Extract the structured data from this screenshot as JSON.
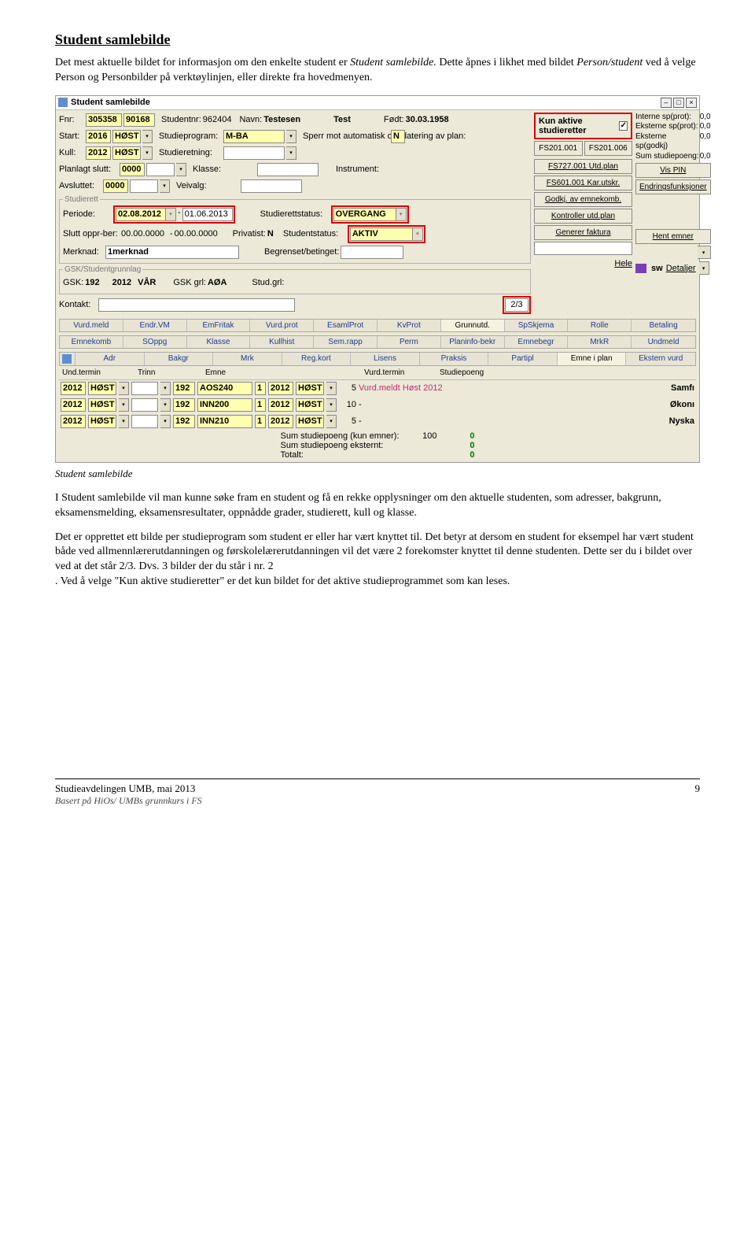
{
  "doc": {
    "heading": "Student samlebilde",
    "intro1": "Det mest aktuelle bildet for informasjon om den enkelte student er ",
    "intro1_em": "Student samlebilde.",
    "intro2": " Dette åpnes i likhet med bildet ",
    "intro2_em": "Person/student",
    "intro3": " ved å velge Person og Personbilder på verktøylinjen, eller direkte fra hovedmenyen.",
    "caption": "Student samlebilde",
    "body1": "I Student samlebilde vil man kunne søke fram en student og få en rekke opplysninger om den aktuelle studenten, som adresser, bakgrunn, eksamensmelding, eksamensresultater, oppnådde grader, studierett, kull og klasse.",
    "body2a": "Det er opprettet ett bilde per studieprogram som student er eller har vært knyttet til. Det betyr at dersom en student for eksempel har vært student både ved allmennlærerutdanningen og førskolelærerutdanningen vil det være 2 forekomster knyttet til denne studenten. Dette ser du i bildet over ved at det står 2/3. Dvs. 3 bilder der du står i nr. 2",
    "body2b": ". Ved å velge \"Kun aktive studieretter\" er det kun bildet for det aktive studieprogrammet som kan leses.",
    "footer_line1": "Studieavdelingen UMB, mai 2013",
    "footer_line2": "Basert på HiOs/ UMBs grunnkurs i FS",
    "page_no": "9"
  },
  "win": {
    "title": "Student samlebilde",
    "labels": {
      "fnr": "Fnr:",
      "studentnr": "Studentnr:",
      "navn": "Navn:",
      "fodt": "Født:",
      "start": "Start:",
      "studieprogram": "Studieprogram:",
      "sperr": "Sperr mot automatisk oppdatering av plan:",
      "kull": "Kull:",
      "studieretning": "Studieretning:",
      "planlagt_slutt": "Planlagt slutt:",
      "klasse": "Klasse:",
      "instrument": "Instrument:",
      "avsluttet": "Avsluttet:",
      "veivalg": "Veivalg:",
      "periode": "Periode:",
      "studierettstatus": "Studierettstatus:",
      "slutt_oppr": "Slutt oppr-ber:",
      "privatist": "Privatist:",
      "studentstatus": "Studentstatus:",
      "merknad": "Merknad:",
      "begrenset": "Begrenset/betinget:",
      "gsk": "GSK:",
      "gsk_grl": "GSK grl:",
      "stud_grl": "Stud.grl:",
      "kontakt": "Kontakt:",
      "kunaktive": "Kun aktive studieretter",
      "hele": "Hele",
      "detaljer": "Detaljer",
      "und_termin": "Und.termin",
      "trinn": "Trinn",
      "emne": "Emne",
      "vurd_termin": "Vurd.termin",
      "studiepoeng": "Studiepoeng",
      "sum1": "Sum studiepoeng (kun emner):",
      "sum2": "Sum studiepoeng eksternt:",
      "sum3": "Totalt:"
    },
    "vals": {
      "fnr1": "305358",
      "fnr2": "90168",
      "studentnr": "962404",
      "navn1": "Testesen",
      "navn2": "Test",
      "fodt": "30.03.1958",
      "start_y": "2016",
      "start_s": "HØST",
      "studieprogram": "M-BA",
      "sperr": "N",
      "kull_y": "2012",
      "kull_s": "HØST",
      "studieretning": "",
      "planlagt_slutt": "0000",
      "klasse": "",
      "instrument": "",
      "avsluttet": "0000",
      "veivalg": "",
      "periode_a": "02.08.2012",
      "periode_b": "01.06.2013",
      "studierettstatus": "OVERGANG",
      "slutt_a": "00.00.0000",
      "slutt_b": "00.00.0000",
      "privatist": "N",
      "studentstatus": "AKTIV",
      "merknad": "1merknad",
      "gsk_inst": "192",
      "gsk_y": "2012",
      "gsk_s": "VÅR",
      "gsk_grl": "AØA",
      "counter": "2/3",
      "sum1": "100",
      "sum2": "0",
      "sum3": "0"
    },
    "sp": {
      "r1": "Interne sp(prot):",
      "v1": "0,0",
      "r2": "Eksterne sp(prot):",
      "v2": "0,0",
      "r3": "Eksterne sp(godkj)",
      "v3": "0,0",
      "r4": "Sum studiepoeng:",
      "v4": "0,0"
    },
    "rbuttons": {
      "fs201a": "FS201.001",
      "fs201b": "FS201.006",
      "fs727": "FS727.001 Utd.plan",
      "vispin": "Vis PIN",
      "fs601": "FS601.001 Kar.utskr.",
      "endr": "Endringsfunksjoner",
      "godkj": "Godkj. av emnekomb.",
      "kontroller": "Kontroller utd.plan",
      "generer": "Generer faktura",
      "hent": "Hent emner"
    },
    "tabs1": [
      "Vurd.meld",
      "Endr.VM",
      "EmFritak",
      "Vurd.prot",
      "EsamlProt",
      "KvProt",
      "Grunnutd.",
      "SpSkjema",
      "Rolle",
      "Betaling"
    ],
    "tabs2": [
      "Emnekomb",
      "SOppg",
      "Klasse",
      "Kullhist",
      "Sem.rapp",
      "Perm",
      "Planinfo-bekr",
      "Emnebegr",
      "MrkR",
      "Undmeld"
    ],
    "tabs3": [
      "Adr",
      "Bakgr",
      "Mrk",
      "Reg.kort",
      "Lisens",
      "Praksis",
      "Partipl",
      "Emne i plan",
      "Ekstern vurd"
    ],
    "rows": [
      {
        "y": "2012",
        "s": "HØST",
        "inst": "192",
        "emne": "AOS240",
        "n": "1",
        "vy": "2012",
        "vs": "HØST",
        "sp": "5",
        "stat": "Vurd.meldt Høst 2012",
        "stat_color": "#c03070",
        "right": "Samfı"
      },
      {
        "y": "2012",
        "s": "HØST",
        "inst": "192",
        "emne": "INN200",
        "n": "1",
        "vy": "2012",
        "vs": "HØST",
        "sp": "10",
        "stat": "-",
        "stat_color": "#000",
        "right": "Økonı"
      },
      {
        "y": "2012",
        "s": "HØST",
        "inst": "192",
        "emne": "INN210",
        "n": "1",
        "vy": "2012",
        "vs": "HØST",
        "sp": "5",
        "stat": "-",
        "stat_color": "#000",
        "right": "Nyska"
      }
    ]
  }
}
